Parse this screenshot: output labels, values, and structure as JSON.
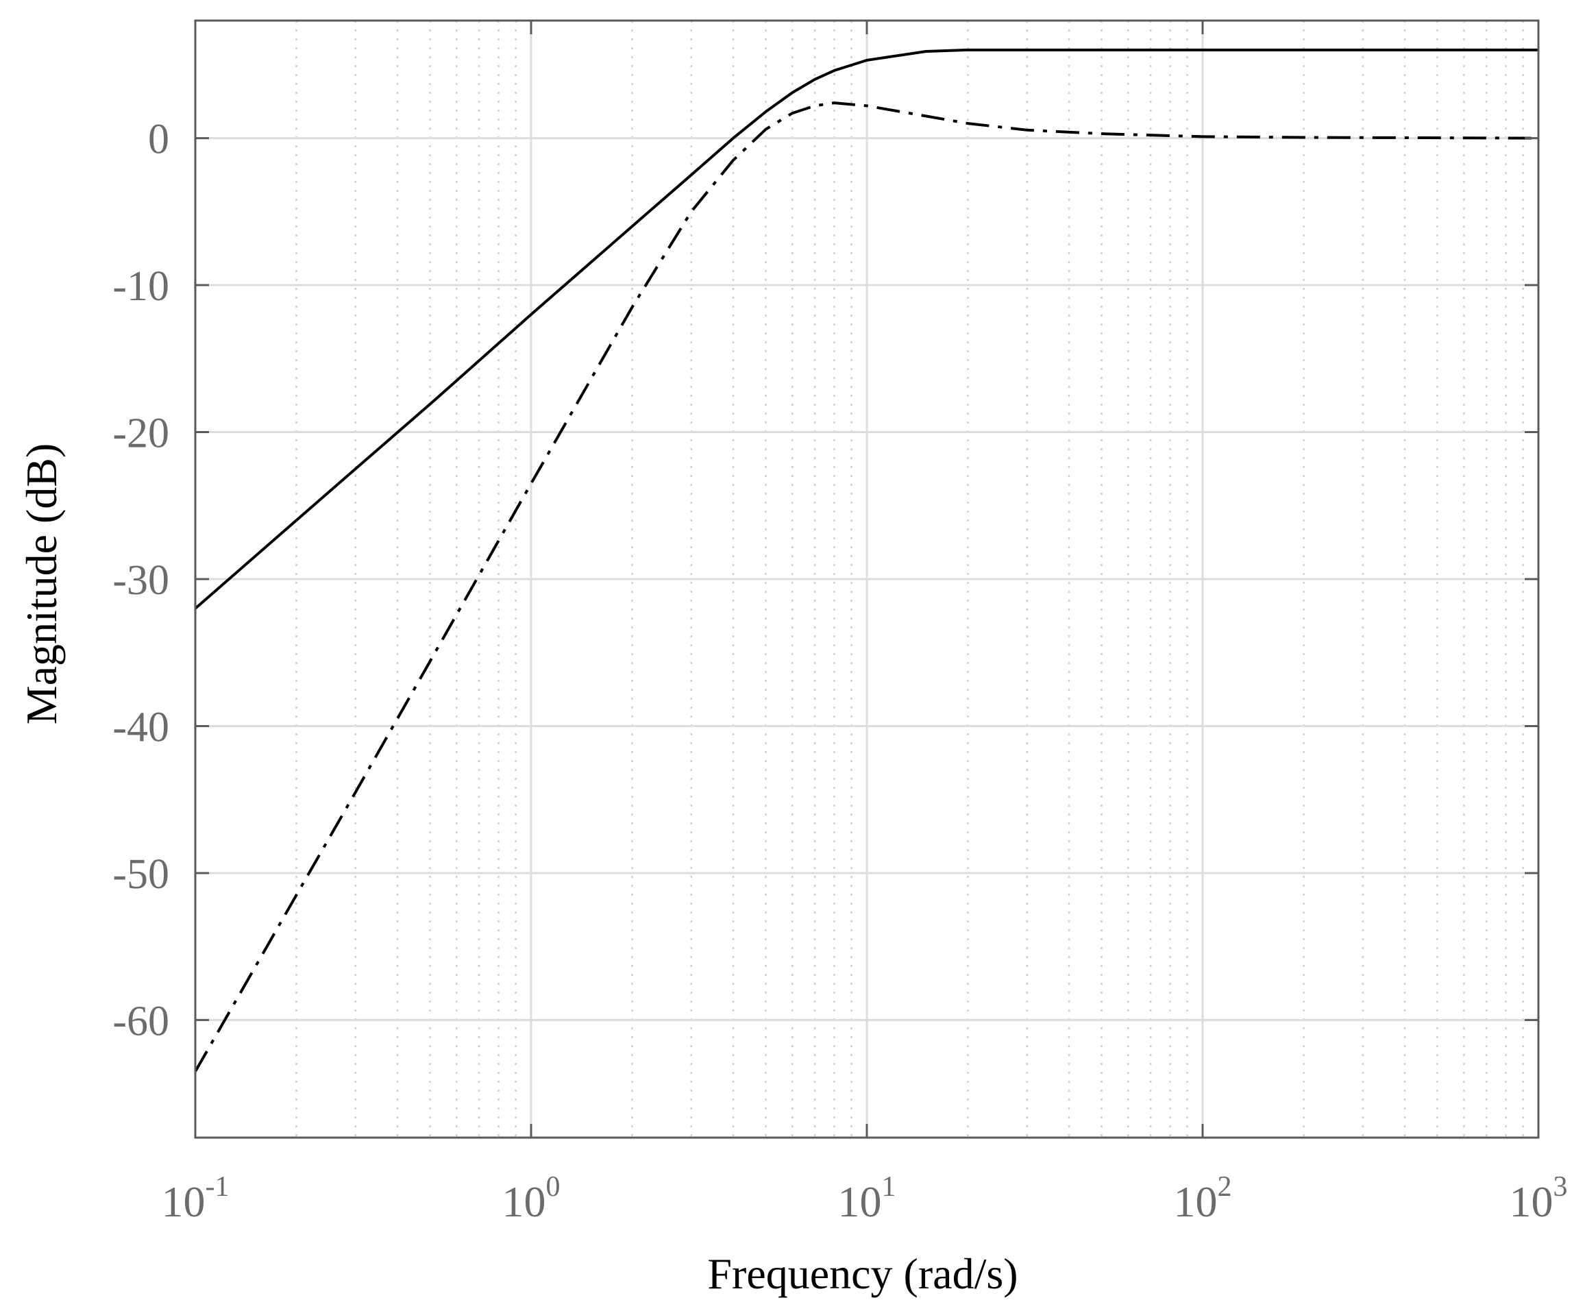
{
  "chart_data": {
    "type": "line",
    "xlabel": "Frequency  (rad/s)",
    "ylabel": "Magnitude (dB)",
    "xscale": "log",
    "xlim": [
      0.1,
      1000
    ],
    "ylim": [
      -68,
      8
    ],
    "grid": true,
    "minor_grid": true,
    "x_ticks": [
      {
        "value": 0.1,
        "base": "10",
        "exp": "-1"
      },
      {
        "value": 1,
        "base": "10",
        "exp": "0"
      },
      {
        "value": 10,
        "base": "10",
        "exp": "1"
      },
      {
        "value": 100,
        "base": "10",
        "exp": "2"
      },
      {
        "value": 1000,
        "base": "10",
        "exp": "3"
      }
    ],
    "y_ticks": [
      {
        "value": 0,
        "label": "0"
      },
      {
        "value": -10,
        "label": "-10"
      },
      {
        "value": -20,
        "label": "-20"
      },
      {
        "value": -30,
        "label": "-30"
      },
      {
        "value": -40,
        "label": "-40"
      },
      {
        "value": -50,
        "label": "-50"
      },
      {
        "value": -60,
        "label": "-60"
      }
    ],
    "series": [
      {
        "style": "solid",
        "color": "#000000",
        "x": [
          0.1,
          0.2,
          0.3,
          0.5,
          1,
          2,
          3,
          4,
          5,
          6,
          7,
          8,
          10,
          15,
          20,
          50,
          100,
          1000
        ],
        "y": [
          -32,
          -26,
          -22.5,
          -18.1,
          -12,
          -6,
          -2.5,
          0,
          1.8,
          3.1,
          4.0,
          4.6,
          5.3,
          5.9,
          6.0,
          6.0,
          6.0,
          6.0
        ]
      },
      {
        "style": "dashdot",
        "color": "#000000",
        "x": [
          0.1,
          0.2,
          0.3,
          0.5,
          1,
          2,
          3,
          4,
          5,
          6,
          7,
          8,
          10,
          15,
          20,
          30,
          50,
          100,
          200,
          1000
        ],
        "y": [
          -63.5,
          -51.5,
          -44.5,
          -35.6,
          -23.5,
          -11.5,
          -5,
          -1.5,
          0.6,
          1.7,
          2.2,
          2.4,
          2.2,
          1.5,
          1.0,
          0.55,
          0.3,
          0.1,
          0.05,
          0.0
        ]
      }
    ]
  }
}
